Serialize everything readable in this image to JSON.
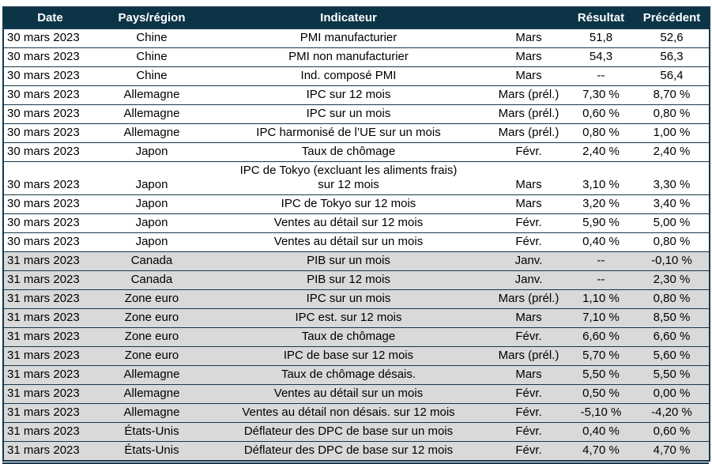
{
  "table": {
    "columns": [
      {
        "key": "date",
        "label": "Date"
      },
      {
        "key": "region",
        "label": "Pays/région"
      },
      {
        "key": "indicator",
        "label": "Indicateur"
      },
      {
        "key": "period",
        "label": ""
      },
      {
        "key": "result",
        "label": "Résultat"
      },
      {
        "key": "previous",
        "label": "Précédent"
      }
    ],
    "rows": [
      {
        "date": "30 mars 2023",
        "region": "Chine",
        "indicator": "PMI manufacturier",
        "period": "Mars",
        "result": "51,8",
        "previous": "52,6",
        "shaded": false
      },
      {
        "date": "30 mars 2023",
        "region": "Chine",
        "indicator": "PMI non manufacturier",
        "period": "Mars",
        "result": "54,3",
        "previous": "56,3",
        "shaded": false
      },
      {
        "date": "30 mars 2023",
        "region": "Chine",
        "indicator": "Ind. composé PMI",
        "period": "Mars",
        "result": "--",
        "previous": "56,4",
        "shaded": false
      },
      {
        "date": "30 mars 2023",
        "region": "Allemagne",
        "indicator": "IPC sur 12 mois",
        "period": "Mars (prél.)",
        "result": "7,30 %",
        "previous": "8,70 %",
        "shaded": false
      },
      {
        "date": "30 mars 2023",
        "region": "Allemagne",
        "indicator": "IPC sur un mois",
        "period": "Mars (prél.)",
        "result": "0,60 %",
        "previous": "0,80 %",
        "shaded": false
      },
      {
        "date": "30 mars 2023",
        "region": "Allemagne",
        "indicator": "IPC harmonisé de l’UE sur un mois",
        "period": "Mars (prél.)",
        "result": "0,80 %",
        "previous": "1,00 %",
        "shaded": false
      },
      {
        "date": "30 mars 2023",
        "region": "Japon",
        "indicator": "Taux de chômage",
        "period": "Févr.",
        "result": "2,40 %",
        "previous": "2,40 %",
        "shaded": false
      },
      {
        "date": "30 mars 2023",
        "region": "Japon",
        "indicator": "IPC de Tokyo (excluant les aliments frais)\nsur 12 mois",
        "period": "Mars",
        "result": "3,10 %",
        "previous": "3,30 %",
        "shaded": false
      },
      {
        "date": "30 mars 2023",
        "region": "Japon",
        "indicator": "IPC de Tokyo sur 12 mois",
        "period": "Mars",
        "result": "3,20 %",
        "previous": "3,40 %",
        "shaded": false
      },
      {
        "date": "30 mars 2023",
        "region": "Japon",
        "indicator": "Ventes au détail sur 12 mois",
        "period": "Févr.",
        "result": "5,90 %",
        "previous": "5,00 %",
        "shaded": false
      },
      {
        "date": "30 mars 2023",
        "region": "Japon",
        "indicator": "Ventes au détail sur un mois",
        "period": "Févr.",
        "result": "0,40 %",
        "previous": "0,80 %",
        "shaded": false
      },
      {
        "date": "31 mars 2023",
        "region": "Canada",
        "indicator": "PIB sur un mois",
        "period": "Janv.",
        "result": "--",
        "previous": "-0,10 %",
        "shaded": true
      },
      {
        "date": "31 mars 2023",
        "region": "Canada",
        "indicator": "PIB sur 12 mois",
        "period": "Janv.",
        "result": "--",
        "previous": "2,30 %",
        "shaded": true
      },
      {
        "date": "31 mars 2023",
        "region": "Zone euro",
        "indicator": "IPC sur un mois",
        "period": "Mars (prél.)",
        "result": "1,10 %",
        "previous": "0,80 %",
        "shaded": true
      },
      {
        "date": "31 mars 2023",
        "region": "Zone euro",
        "indicator": "IPC est. sur 12 mois",
        "period": "Mars",
        "result": "7,10 %",
        "previous": "8,50 %",
        "shaded": true
      },
      {
        "date": "31 mars 2023",
        "region": "Zone euro",
        "indicator": "Taux de chômage",
        "period": "Févr.",
        "result": "6,60 %",
        "previous": "6,60 %",
        "shaded": true
      },
      {
        "date": "31 mars 2023",
        "region": "Zone euro",
        "indicator": "IPC de base sur 12 mois",
        "period": "Mars (prél.)",
        "result": "5,70 %",
        "previous": "5,60 %",
        "shaded": true
      },
      {
        "date": "31 mars 2023",
        "region": "Allemagne",
        "indicator": "Taux de chômage désais.",
        "period": "Mars",
        "result": "5,50 %",
        "previous": "5,50 %",
        "shaded": true
      },
      {
        "date": "31 mars 2023",
        "region": "Allemagne",
        "indicator": "Ventes au détail sur un mois",
        "period": "Févr.",
        "result": "0,50 %",
        "previous": "0,00 %",
        "shaded": true
      },
      {
        "date": "31 mars 2023",
        "region": "Allemagne",
        "indicator": "Ventes au détail non désais. sur 12 mois",
        "period": "Févr.",
        "result": "-5,10 %",
        "previous": "-4,20 %",
        "shaded": true
      },
      {
        "date": "31 mars 2023",
        "region": "États-Unis",
        "indicator": "Déflateur des DPC de base sur un mois",
        "period": "Févr.",
        "result": "0,40 %",
        "previous": "0,60 %",
        "shaded": true
      },
      {
        "date": "31 mars 2023",
        "region": "États-Unis",
        "indicator": "Déflateur des DPC de base sur 12 mois",
        "period": "Févr.",
        "result": "4,70 %",
        "previous": "4,70 %",
        "shaded": true
      }
    ]
  },
  "colors": {
    "header_bg": "#0c3447",
    "header_text": "#ffffff",
    "row_border": "#16384c",
    "shaded_row_bg": "#d9d9d9",
    "row_bg": "#ffffff",
    "text": "#000000"
  }
}
